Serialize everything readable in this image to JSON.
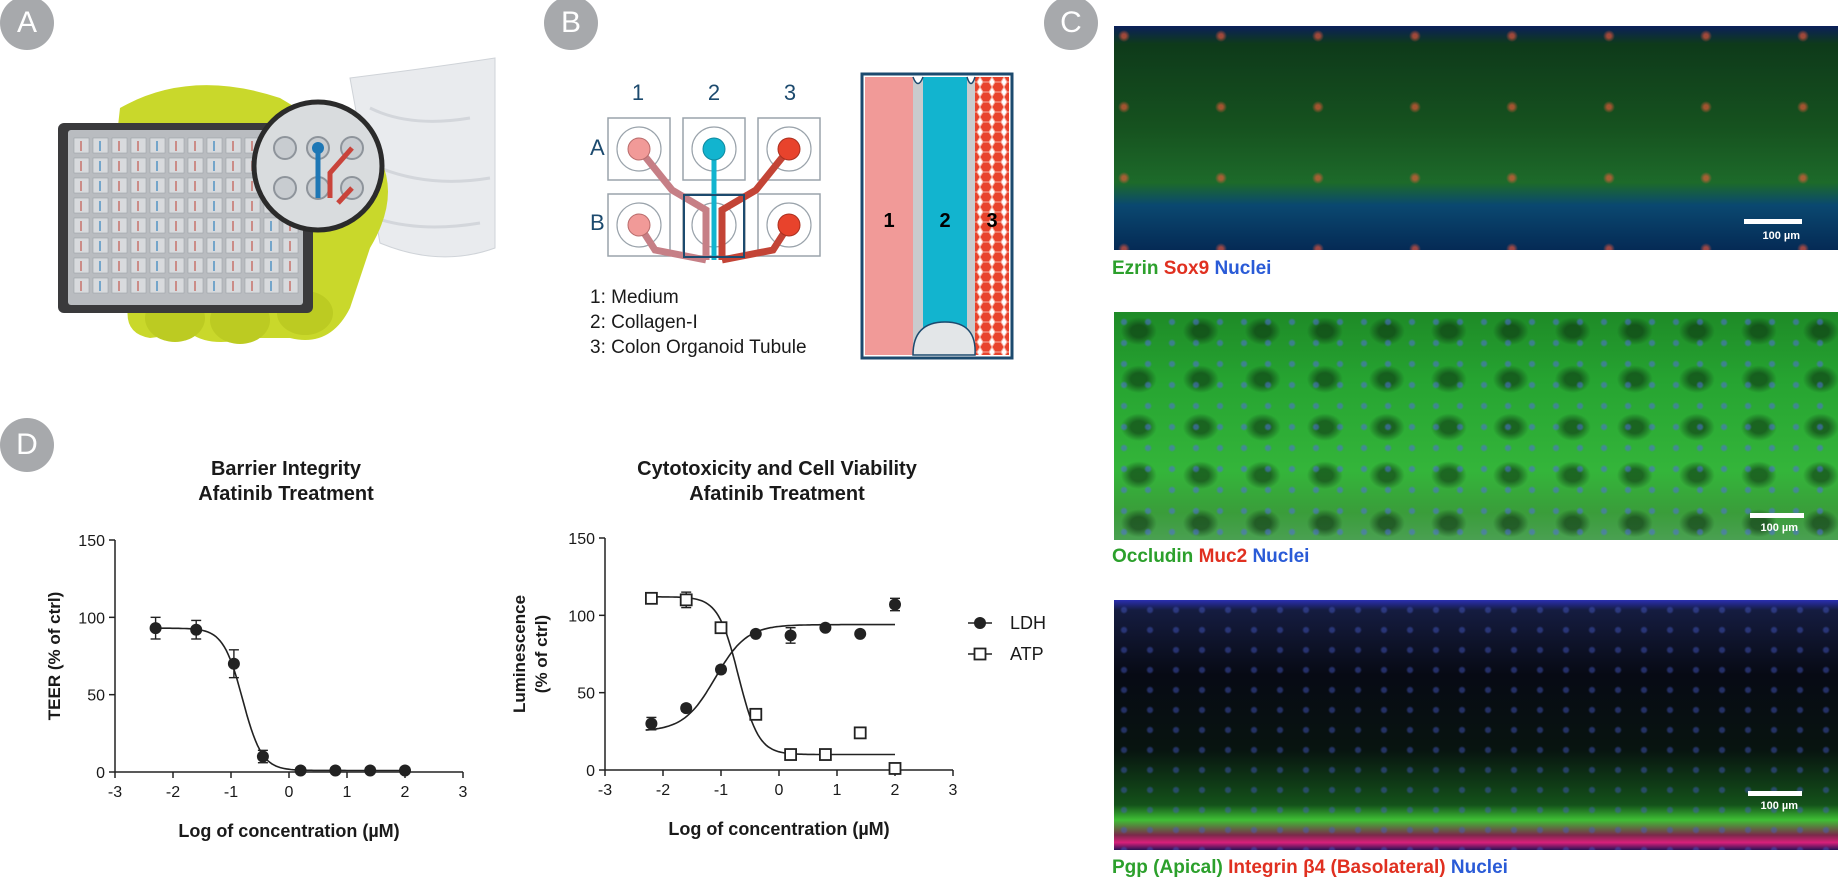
{
  "panels": {
    "a": "A",
    "b": "B",
    "c": "C",
    "d": "D"
  },
  "device": {
    "columns": [
      "1",
      "2",
      "3"
    ],
    "rows": [
      "A",
      "B"
    ],
    "legend": [
      "1: Medium",
      "2: Collagen-I",
      "3: Colon Organoid Tubule"
    ],
    "channels": [
      "1",
      "2",
      "3"
    ],
    "colors": {
      "medium": "#f19a98",
      "collagen": "#12b4cf",
      "tubule": "#e8432c",
      "outline": "#1c4a6e"
    }
  },
  "microscopy": [
    {
      "parts": [
        {
          "text": "Ezrin",
          "color": "green"
        },
        {
          "text": "Sox9",
          "color": "red"
        },
        {
          "text": "Nuclei",
          "color": "blue"
        }
      ],
      "scale": "100 µm"
    },
    {
      "parts": [
        {
          "text": "Occludin",
          "color": "green"
        },
        {
          "text": "Muc2",
          "color": "red"
        },
        {
          "text": "Nuclei",
          "color": "blue"
        }
      ],
      "scale": "100 µm"
    },
    {
      "parts": [
        {
          "text": "Pgp (Apical)",
          "color": "green"
        },
        {
          "text": "Integrin β4 (Basolateral)",
          "color": "red"
        },
        {
          "text": "Nuclei",
          "color": "blue"
        }
      ],
      "scale": "100 µm"
    }
  ],
  "chart_data": [
    {
      "type": "scatter",
      "title": [
        "Barrier Integrity",
        "Afatinib Treatment"
      ],
      "xlabel": "Log of concentration (µM)",
      "ylabel": [
        "TEER (% of ctrl)"
      ],
      "xlim": [
        -3,
        3
      ],
      "ylim": [
        0,
        150
      ],
      "xticks": [
        "-3",
        "-2",
        "-1",
        "0",
        "1",
        "2",
        "3"
      ],
      "yticks": [
        "0",
        "50",
        "100",
        "150"
      ],
      "series": [
        {
          "marker": "filled-circle",
          "x": [
            -2.3,
            -1.6,
            -0.95,
            -0.45,
            0.2,
            0.8,
            1.4,
            2.0
          ],
          "y": [
            93,
            92,
            70,
            10,
            1,
            1,
            1,
            1
          ],
          "err": [
            7,
            6,
            9,
            4,
            0,
            0,
            0,
            0
          ],
          "fit": {
            "top": 93,
            "bottom": 1,
            "ec50": -0.8,
            "hill": -2.6
          }
        }
      ]
    },
    {
      "type": "scatter",
      "title": [
        "Cytotoxicity and Cell Viability",
        "Afatinib Treatment"
      ],
      "xlabel": "Log of concentration (µM)",
      "ylabel": [
        "Luminescence",
        "(% of ctrl)"
      ],
      "xlim": [
        -3,
        3
      ],
      "ylim": [
        0,
        150
      ],
      "xticks": [
        "-3",
        "-2",
        "-1",
        "0",
        "1",
        "2",
        "3"
      ],
      "yticks": [
        "0",
        "50",
        "100",
        "150"
      ],
      "legend": [
        "LDH",
        "ATP"
      ],
      "series": [
        {
          "name": "LDH",
          "marker": "filled-circle",
          "x": [
            -2.2,
            -1.6,
            -1.0,
            -0.4,
            0.2,
            0.8,
            1.4,
            2.0
          ],
          "y": [
            30,
            40,
            65,
            88,
            87,
            92,
            88,
            107
          ],
          "err": [
            4,
            2,
            2,
            1,
            5,
            1,
            1,
            4
          ],
          "fit": {
            "top": 94,
            "bottom": 25,
            "ec50": -1.1,
            "hill": 1.6
          }
        },
        {
          "name": "ATP",
          "marker": "open-square",
          "x": [
            -2.2,
            -1.6,
            -1.0,
            -0.4,
            0.2,
            0.8,
            1.4,
            2.0
          ],
          "y": [
            111,
            110,
            92,
            36,
            10,
            10,
            24,
            1
          ],
          "err": [
            2,
            5,
            2,
            3,
            1,
            1,
            1,
            1
          ],
          "fit": {
            "top": 112,
            "bottom": 10,
            "ec50": -0.7,
            "hill": -2.5
          }
        }
      ]
    }
  ]
}
